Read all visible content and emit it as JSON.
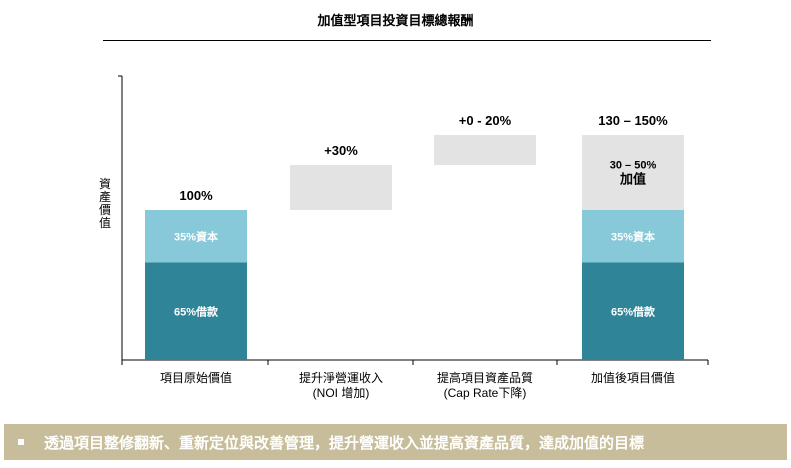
{
  "title": "加值型項目投資目標總報酬",
  "banner_text": "透過項目整修翻新、重新定位與改善管理，提升營運收入並提高資產品質，達成加值的目標",
  "colors": {
    "debt": "#2f8498",
    "equity": "#87c8d9",
    "increment": "#e3e3e3",
    "banner": "#c8bd9a"
  },
  "chart_data": {
    "type": "bar",
    "subtype": "waterfall",
    "ylabel": "資產價值",
    "grid": false,
    "categories": [
      "項目原始價值",
      "提升淨營運收入\n(NOI 增加)",
      "提高項目資產品質\n(Cap Rate下降)",
      "加值後項目價值"
    ],
    "bars": [
      {
        "top_label": "100%",
        "segments": [
          {
            "kind": "debt",
            "base": 0,
            "value": 65,
            "label": "65%借款"
          },
          {
            "kind": "equity",
            "base": 65,
            "value": 35,
            "label": "35%資本"
          }
        ]
      },
      {
        "top_label": "+30%",
        "segments": [
          {
            "kind": "increment",
            "base": 100,
            "value": 30,
            "label": ""
          }
        ]
      },
      {
        "top_label": "+0 - 20%",
        "segments": [
          {
            "kind": "increment",
            "base": 130,
            "value": 20,
            "label": ""
          }
        ]
      },
      {
        "top_label": "130 – 150%",
        "segments": [
          {
            "kind": "debt",
            "base": 0,
            "value": 65,
            "label": "65%借款"
          },
          {
            "kind": "equity",
            "base": 65,
            "value": 35,
            "label": "35%資本"
          },
          {
            "kind": "increment",
            "base": 100,
            "value": 50,
            "label": "30 – 50%\n加值"
          }
        ]
      }
    ],
    "ylim": [
      0,
      155
    ]
  }
}
